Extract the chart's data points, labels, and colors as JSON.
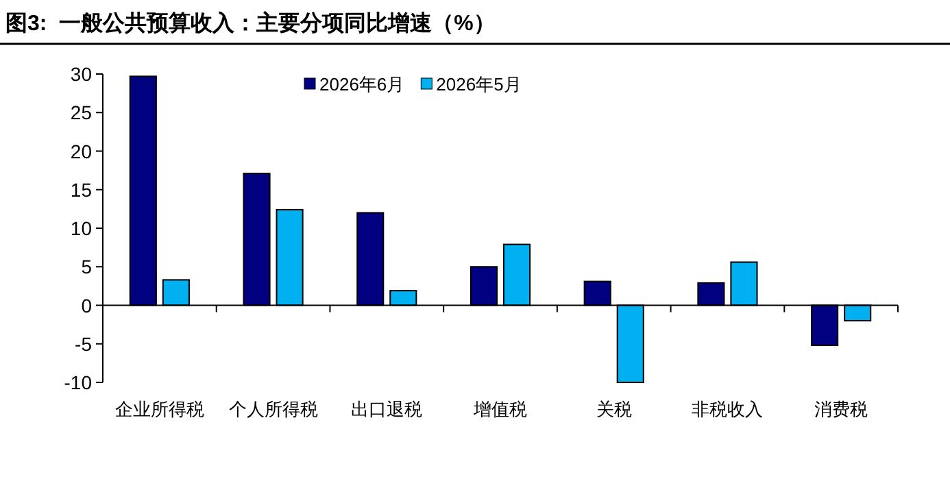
{
  "chart_data": {
    "type": "bar",
    "title": "**图3:**  **一般公共预算收入：主要分项同比增速（%）**",
    "categories": [
      "企业所得税",
      "个人所得税",
      "出口退税",
      "增值税",
      "关税",
      "非税收入",
      "消费税"
    ],
    "series": [
      {
        "name": "2026年6月",
        "color": "#000080",
        "values": [
          29.7,
          17.1,
          12.0,
          5.0,
          3.1,
          2.9,
          -5.2
        ]
      },
      {
        "name": "2026年5月",
        "color": "#00b0f0",
        "values": [
          3.3,
          12.4,
          1.9,
          7.9,
          -10,
          5.6,
          -2.0
        ]
      }
    ],
    "ylim": [
      -10,
      30
    ],
    "yticks": [
      -10,
      -5,
      0,
      5,
      10,
      15,
      20,
      25,
      30
    ],
    "legend": "top"
  }
}
